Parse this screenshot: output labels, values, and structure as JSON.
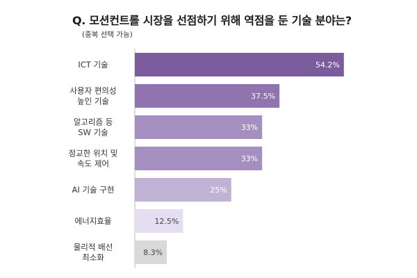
{
  "header": {
    "title": "Q. 모션컨트롤 시장을 선점하기 위해 역점을 둔 기술 분야는?",
    "subtitle": "(중복 선택 가능)"
  },
  "chart_data": {
    "type": "bar",
    "orientation": "horizontal",
    "title": "Q. 모션컨트롤 시장을 선점하기 위해 역점을 둔 기술 분야는?",
    "subtitle": "(중복 선택 가능)",
    "xlabel": "",
    "ylabel": "",
    "xlim": [
      0,
      60
    ],
    "grid": false,
    "categories": [
      [
        "ICT 기술"
      ],
      [
        "사용자 편의성",
        "높인 기술"
      ],
      [
        "알고리즘 등",
        "SW 기술"
      ],
      [
        "정교한 위치 및",
        "속도 제어"
      ],
      [
        "AI 기술 구현"
      ],
      [
        "에너지효율"
      ],
      [
        "물리적 배선",
        "최소화"
      ]
    ],
    "values": [
      54.2,
      37.5,
      33,
      33,
      25,
      12.5,
      8.3
    ],
    "value_labels": [
      "54.2%",
      "37.5%",
      "33%",
      "33%",
      "25%",
      "12.5%",
      "8.3%"
    ],
    "colors": [
      "#7b5d9e",
      "#8f74af",
      "#a48fc0",
      "#a48fc0",
      "#c0b2d5",
      "#e4def0",
      "#d9d9d9"
    ]
  }
}
